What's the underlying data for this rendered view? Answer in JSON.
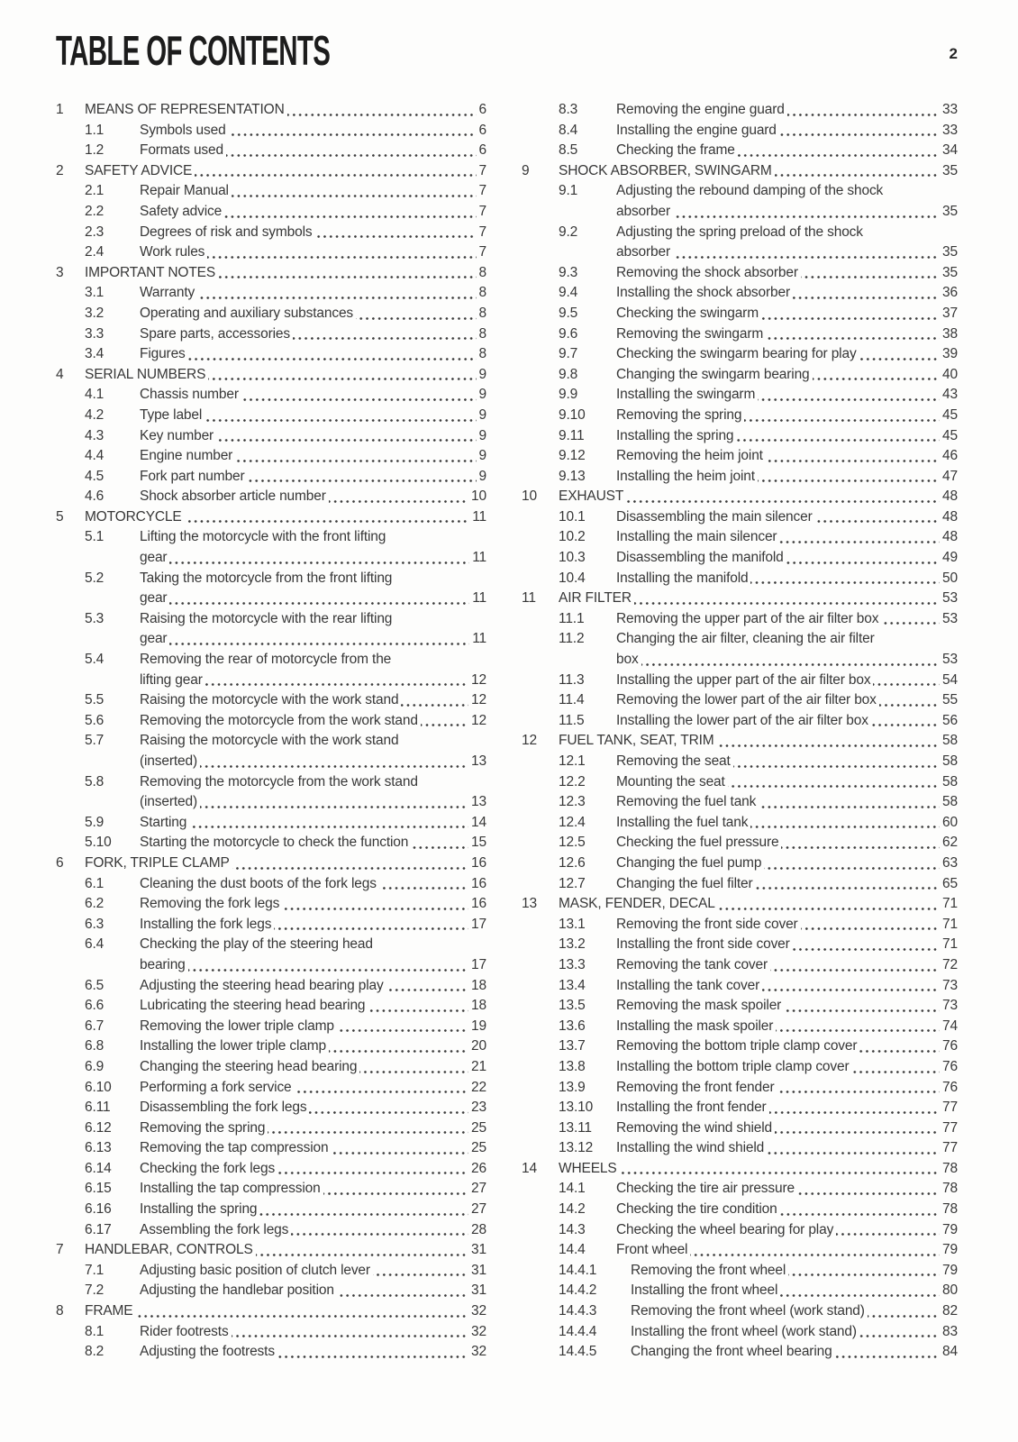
{
  "header": {
    "title": "TABLE OF CONTENTS",
    "page_number": "2"
  },
  "toc": {
    "left_column": [
      {
        "num": "1",
        "level": 1,
        "lines": [
          "MEANS OF REPRESENTATION"
        ],
        "page": "6"
      },
      {
        "num": "1.1",
        "level": 2,
        "lines": [
          "Symbols used"
        ],
        "page": "6"
      },
      {
        "num": "1.2",
        "level": 2,
        "lines": [
          "Formats used"
        ],
        "page": "6"
      },
      {
        "num": "2",
        "level": 1,
        "lines": [
          "SAFETY ADVICE"
        ],
        "page": "7"
      },
      {
        "num": "2.1",
        "level": 2,
        "lines": [
          "Repair Manual"
        ],
        "page": "7"
      },
      {
        "num": "2.2",
        "level": 2,
        "lines": [
          "Safety advice"
        ],
        "page": "7"
      },
      {
        "num": "2.3",
        "level": 2,
        "lines": [
          "Degrees of risk and symbols"
        ],
        "page": "7"
      },
      {
        "num": "2.4",
        "level": 2,
        "lines": [
          "Work rules"
        ],
        "page": "7"
      },
      {
        "num": "3",
        "level": 1,
        "lines": [
          "IMPORTANT NOTES"
        ],
        "page": "8"
      },
      {
        "num": "3.1",
        "level": 2,
        "lines": [
          "Warranty"
        ],
        "page": "8"
      },
      {
        "num": "3.2",
        "level": 2,
        "lines": [
          "Operating and auxiliary substances"
        ],
        "page": "8"
      },
      {
        "num": "3.3",
        "level": 2,
        "lines": [
          "Spare parts, accessories"
        ],
        "page": "8"
      },
      {
        "num": "3.4",
        "level": 2,
        "lines": [
          "Figures"
        ],
        "page": "8"
      },
      {
        "num": "4",
        "level": 1,
        "lines": [
          "SERIAL NUMBERS"
        ],
        "page": "9"
      },
      {
        "num": "4.1",
        "level": 2,
        "lines": [
          "Chassis number"
        ],
        "page": "9"
      },
      {
        "num": "4.2",
        "level": 2,
        "lines": [
          "Type label"
        ],
        "page": "9"
      },
      {
        "num": "4.3",
        "level": 2,
        "lines": [
          "Key number"
        ],
        "page": "9"
      },
      {
        "num": "4.4",
        "level": 2,
        "lines": [
          "Engine number"
        ],
        "page": "9"
      },
      {
        "num": "4.5",
        "level": 2,
        "lines": [
          "Fork part number"
        ],
        "page": "9"
      },
      {
        "num": "4.6",
        "level": 2,
        "lines": [
          "Shock absorber article number"
        ],
        "page": "10"
      },
      {
        "num": "5",
        "level": 1,
        "lines": [
          "MOTORCYCLE"
        ],
        "page": "11"
      },
      {
        "num": "5.1",
        "level": 2,
        "lines": [
          "Lifting the motorcycle with the front lifting",
          "gear"
        ],
        "page": "11"
      },
      {
        "num": "5.2",
        "level": 2,
        "lines": [
          "Taking the motorcycle from the front lifting",
          "gear"
        ],
        "page": "11"
      },
      {
        "num": "5.3",
        "level": 2,
        "lines": [
          "Raising the motorcycle with the rear lifting",
          "gear"
        ],
        "page": "11"
      },
      {
        "num": "5.4",
        "level": 2,
        "lines": [
          "Removing the rear of motorcycle from the",
          "lifting gear"
        ],
        "page": "12"
      },
      {
        "num": "5.5",
        "level": 2,
        "lines": [
          "Raising the motorcycle with the work stand"
        ],
        "page": "12"
      },
      {
        "num": "5.6",
        "level": 2,
        "lines": [
          "Removing the motorcycle from the work stand"
        ],
        "page": "12"
      },
      {
        "num": "5.7",
        "level": 2,
        "lines": [
          "Raising the motorcycle with the work stand",
          "(inserted)"
        ],
        "page": "13"
      },
      {
        "num": "5.8",
        "level": 2,
        "lines": [
          "Removing the motorcycle from the work stand",
          "(inserted)"
        ],
        "page": "13"
      },
      {
        "num": "5.9",
        "level": 2,
        "lines": [
          "Starting"
        ],
        "page": "14"
      },
      {
        "num": "5.10",
        "level": 2,
        "lines": [
          "Starting the motorcycle to check the function"
        ],
        "page": "15"
      },
      {
        "num": "6",
        "level": 1,
        "lines": [
          "FORK, TRIPLE CLAMP"
        ],
        "page": "16"
      },
      {
        "num": "6.1",
        "level": 2,
        "lines": [
          "Cleaning the dust boots of the fork legs"
        ],
        "page": "16"
      },
      {
        "num": "6.2",
        "level": 2,
        "lines": [
          "Removing the fork legs"
        ],
        "page": "16"
      },
      {
        "num": "6.3",
        "level": 2,
        "lines": [
          "Installing the fork legs"
        ],
        "page": "17"
      },
      {
        "num": "6.4",
        "level": 2,
        "lines": [
          "Checking the play of the steering head",
          "bearing"
        ],
        "page": "17"
      },
      {
        "num": "6.5",
        "level": 2,
        "lines": [
          "Adjusting the steering head bearing play"
        ],
        "page": "18"
      },
      {
        "num": "6.6",
        "level": 2,
        "lines": [
          "Lubricating the steering head bearing"
        ],
        "page": "18"
      },
      {
        "num": "6.7",
        "level": 2,
        "lines": [
          "Removing the lower triple clamp"
        ],
        "page": "19"
      },
      {
        "num": "6.8",
        "level": 2,
        "lines": [
          "Installing the lower triple clamp"
        ],
        "page": "20"
      },
      {
        "num": "6.9",
        "level": 2,
        "lines": [
          "Changing the steering head bearing"
        ],
        "page": "21"
      },
      {
        "num": "6.10",
        "level": 2,
        "lines": [
          "Performing a fork service"
        ],
        "page": "22"
      },
      {
        "num": "6.11",
        "level": 2,
        "lines": [
          "Disassembling the fork legs"
        ],
        "page": "23"
      },
      {
        "num": "6.12",
        "level": 2,
        "lines": [
          "Removing the spring"
        ],
        "page": "25"
      },
      {
        "num": "6.13",
        "level": 2,
        "lines": [
          "Removing the tap compression"
        ],
        "page": "25"
      },
      {
        "num": "6.14",
        "level": 2,
        "lines": [
          "Checking the fork legs"
        ],
        "page": "26"
      },
      {
        "num": "6.15",
        "level": 2,
        "lines": [
          "Installing the tap compression"
        ],
        "page": "27"
      },
      {
        "num": "6.16",
        "level": 2,
        "lines": [
          "Installing the spring"
        ],
        "page": "27"
      },
      {
        "num": "6.17",
        "level": 2,
        "lines": [
          "Assembling the fork legs"
        ],
        "page": "28"
      },
      {
        "num": "7",
        "level": 1,
        "lines": [
          "HANDLEBAR, CONTROLS"
        ],
        "page": "31"
      },
      {
        "num": "7.1",
        "level": 2,
        "lines": [
          "Adjusting basic position of clutch lever"
        ],
        "page": "31"
      },
      {
        "num": "7.2",
        "level": 2,
        "lines": [
          "Adjusting the handlebar position"
        ],
        "page": "31"
      },
      {
        "num": "8",
        "level": 1,
        "lines": [
          "FRAME"
        ],
        "page": "32"
      },
      {
        "num": "8.1",
        "level": 2,
        "lines": [
          "Rider footrests"
        ],
        "page": "32"
      },
      {
        "num": "8.2",
        "level": 2,
        "lines": [
          "Adjusting the footrests"
        ],
        "page": "32"
      }
    ],
    "right_column": [
      {
        "num": "8.3",
        "level": 2,
        "lines": [
          "Removing the engine guard"
        ],
        "page": "33"
      },
      {
        "num": "8.4",
        "level": 2,
        "lines": [
          "Installing the engine guard"
        ],
        "page": "33"
      },
      {
        "num": "8.5",
        "level": 2,
        "lines": [
          "Checking the frame"
        ],
        "page": "34"
      },
      {
        "num": "9",
        "level": 1,
        "lines": [
          "SHOCK ABSORBER, SWINGARM"
        ],
        "page": "35"
      },
      {
        "num": "9.1",
        "level": 2,
        "lines": [
          "Adjusting the rebound damping of the shock",
          "absorber"
        ],
        "page": "35"
      },
      {
        "num": "9.2",
        "level": 2,
        "lines": [
          "Adjusting the spring preload of the shock",
          "absorber"
        ],
        "page": "35"
      },
      {
        "num": "9.3",
        "level": 2,
        "lines": [
          "Removing the shock absorber"
        ],
        "page": "35"
      },
      {
        "num": "9.4",
        "level": 2,
        "lines": [
          "Installing the shock absorber"
        ],
        "page": "36"
      },
      {
        "num": "9.5",
        "level": 2,
        "lines": [
          "Checking the swingarm"
        ],
        "page": "37"
      },
      {
        "num": "9.6",
        "level": 2,
        "lines": [
          "Removing the swingarm"
        ],
        "page": "38"
      },
      {
        "num": "9.7",
        "level": 2,
        "lines": [
          "Checking the swingarm bearing for play"
        ],
        "page": "39"
      },
      {
        "num": "9.8",
        "level": 2,
        "lines": [
          "Changing the swingarm bearing"
        ],
        "page": "40"
      },
      {
        "num": "9.9",
        "level": 2,
        "lines": [
          "Installing the swingarm"
        ],
        "page": "43"
      },
      {
        "num": "9.10",
        "level": 2,
        "lines": [
          "Removing the spring"
        ],
        "page": "45"
      },
      {
        "num": "9.11",
        "level": 2,
        "lines": [
          "Installing the spring"
        ],
        "page": "45"
      },
      {
        "num": "9.12",
        "level": 2,
        "lines": [
          "Removing the heim joint"
        ],
        "page": "46"
      },
      {
        "num": "9.13",
        "level": 2,
        "lines": [
          "Installing the heim joint"
        ],
        "page": "47"
      },
      {
        "num": "10",
        "level": 1,
        "lines": [
          "EXHAUST"
        ],
        "page": "48"
      },
      {
        "num": "10.1",
        "level": 2,
        "lines": [
          "Disassembling the main silencer"
        ],
        "page": "48"
      },
      {
        "num": "10.2",
        "level": 2,
        "lines": [
          "Installing the main silencer"
        ],
        "page": "48"
      },
      {
        "num": "10.3",
        "level": 2,
        "lines": [
          "Disassembling the manifold"
        ],
        "page": "49"
      },
      {
        "num": "10.4",
        "level": 2,
        "lines": [
          "Installing the manifold"
        ],
        "page": "50"
      },
      {
        "num": "11",
        "level": 1,
        "lines": [
          "AIR FILTER"
        ],
        "page": "53"
      },
      {
        "num": "11.1",
        "level": 2,
        "lines": [
          "Removing the upper part of the air filter box"
        ],
        "page": "53"
      },
      {
        "num": "11.2",
        "level": 2,
        "lines": [
          "Changing the air filter, cleaning the air filter",
          "box"
        ],
        "page": "53"
      },
      {
        "num": "11.3",
        "level": 2,
        "lines": [
          "Installing the upper part of the air filter box"
        ],
        "page": "54"
      },
      {
        "num": "11.4",
        "level": 2,
        "lines": [
          "Removing the lower part of the air filter box"
        ],
        "page": "55"
      },
      {
        "num": "11.5",
        "level": 2,
        "lines": [
          "Installing the lower part of the air filter box"
        ],
        "page": "56"
      },
      {
        "num": "12",
        "level": 1,
        "lines": [
          "FUEL TANK, SEAT, TRIM"
        ],
        "page": "58"
      },
      {
        "num": "12.1",
        "level": 2,
        "lines": [
          "Removing the seat"
        ],
        "page": "58"
      },
      {
        "num": "12.2",
        "level": 2,
        "lines": [
          "Mounting the seat"
        ],
        "page": "58"
      },
      {
        "num": "12.3",
        "level": 2,
        "lines": [
          "Removing the fuel tank"
        ],
        "page": "58"
      },
      {
        "num": "12.4",
        "level": 2,
        "lines": [
          "Installing the fuel tank"
        ],
        "page": "60"
      },
      {
        "num": "12.5",
        "level": 2,
        "lines": [
          "Checking the fuel pressure"
        ],
        "page": "62"
      },
      {
        "num": "12.6",
        "level": 2,
        "lines": [
          "Changing the fuel pump"
        ],
        "page": "63"
      },
      {
        "num": "12.7",
        "level": 2,
        "lines": [
          "Changing the fuel filter"
        ],
        "page": "65"
      },
      {
        "num": "13",
        "level": 1,
        "lines": [
          "MASK, FENDER, DECAL"
        ],
        "page": "71"
      },
      {
        "num": "13.1",
        "level": 2,
        "lines": [
          "Removing the front side cover"
        ],
        "page": "71"
      },
      {
        "num": "13.2",
        "level": 2,
        "lines": [
          "Installing the front side cover"
        ],
        "page": "71"
      },
      {
        "num": "13.3",
        "level": 2,
        "lines": [
          "Removing the tank cover"
        ],
        "page": "72"
      },
      {
        "num": "13.4",
        "level": 2,
        "lines": [
          "Installing the tank cover"
        ],
        "page": "73"
      },
      {
        "num": "13.5",
        "level": 2,
        "lines": [
          "Removing the mask spoiler"
        ],
        "page": "73"
      },
      {
        "num": "13.6",
        "level": 2,
        "lines": [
          "Installing the mask spoiler"
        ],
        "page": "74"
      },
      {
        "num": "13.7",
        "level": 2,
        "lines": [
          "Removing the bottom triple clamp cover"
        ],
        "page": "76"
      },
      {
        "num": "13.8",
        "level": 2,
        "lines": [
          "Installing the bottom triple clamp cover"
        ],
        "page": "76"
      },
      {
        "num": "13.9",
        "level": 2,
        "lines": [
          "Removing the front fender"
        ],
        "page": "76"
      },
      {
        "num": "13.10",
        "level": 2,
        "lines": [
          "Installing the front fender"
        ],
        "page": "77"
      },
      {
        "num": "13.11",
        "level": 2,
        "lines": [
          "Removing the wind shield"
        ],
        "page": "77"
      },
      {
        "num": "13.12",
        "level": 2,
        "lines": [
          "Installing the wind shield"
        ],
        "page": "77"
      },
      {
        "num": "14",
        "level": 1,
        "lines": [
          "WHEELS"
        ],
        "page": "78"
      },
      {
        "num": "14.1",
        "level": 2,
        "lines": [
          "Checking the tire air pressure"
        ],
        "page": "78"
      },
      {
        "num": "14.2",
        "level": 2,
        "lines": [
          "Checking the tire condition"
        ],
        "page": "78"
      },
      {
        "num": "14.3",
        "level": 2,
        "lines": [
          "Checking the wheel bearing for play"
        ],
        "page": "79"
      },
      {
        "num": "14.4",
        "level": 2,
        "lines": [
          "Front wheel"
        ],
        "page": "79"
      },
      {
        "num": "14.4.1",
        "level": 3,
        "lines": [
          "Removing the front wheel"
        ],
        "page": "79"
      },
      {
        "num": "14.4.2",
        "level": 3,
        "lines": [
          "Installing the front wheel"
        ],
        "page": "80"
      },
      {
        "num": "14.4.3",
        "level": 3,
        "lines": [
          "Removing the front wheel (work stand)"
        ],
        "page": "82"
      },
      {
        "num": "14.4.4",
        "level": 3,
        "lines": [
          "Installing the front wheel (work stand)"
        ],
        "page": "83"
      },
      {
        "num": "14.4.5",
        "level": 3,
        "lines": [
          "Changing the front wheel bearing"
        ],
        "page": "84"
      }
    ]
  }
}
